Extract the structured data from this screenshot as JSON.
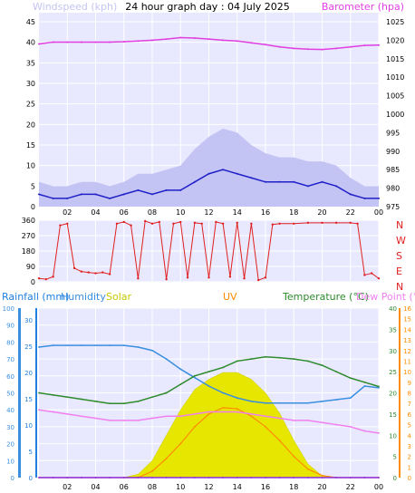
{
  "title": "24 hour graph day : 04 July 2025",
  "x_ticks": [
    "02",
    "04",
    "06",
    "08",
    "10",
    "12",
    "14",
    "16",
    "18",
    "20",
    "22",
    "00"
  ],
  "colors": {
    "plot_bg": "#e8e8ff",
    "wind_gust": "#c4c4f4",
    "wind_avg": "#2020c8",
    "barometer": "#e040e0",
    "direction": "#e02020",
    "humidity": "#3a8fe0",
    "temperature": "#2e8b2e",
    "dewpoint": "#f080f0",
    "solar": "#e6e600",
    "uv": "#ff8c00",
    "rainfall": "#2080e0"
  },
  "panel1": {
    "left_label": "Windspeed (kph)",
    "right_label": "Barometer (hpa)",
    "left_ticks": [
      "0",
      "5",
      "10",
      "15",
      "20",
      "25",
      "30",
      "35",
      "40",
      "45"
    ],
    "right_ticks": [
      "975",
      "980",
      "985",
      "990",
      "995",
      "1000",
      "1005",
      "1010",
      "1015",
      "1020",
      "1025"
    ]
  },
  "panel2": {
    "left_ticks": [
      "0",
      "90",
      "180",
      "270",
      "360"
    ],
    "compass": [
      "N",
      "W",
      "S",
      "E",
      "N"
    ]
  },
  "panel3": {
    "labels": {
      "rainfall": "Rainfall (mm)",
      "humidity": "Humidity",
      "solar": "Solar",
      "uv": "UV",
      "temperature": "Temperature (°C)",
      "dewpoint": "Dew Point (°C)"
    },
    "humidity_ticks": [
      "0",
      "10",
      "20",
      "30",
      "40",
      "50",
      "60",
      "70",
      "80",
      "90",
      "100"
    ],
    "rain_ticks": [
      "0",
      "5",
      "10",
      "15",
      "20",
      "25",
      "30"
    ],
    "temp_ticks": [
      "0",
      "5",
      "10",
      "15",
      "20",
      "25",
      "30",
      "35",
      "40"
    ],
    "uv_ticks": [
      "0",
      "1",
      "2",
      "3",
      "4",
      "5",
      "6",
      "7",
      "8",
      "9",
      "10",
      "11",
      "12",
      "13",
      "14",
      "15",
      "16"
    ]
  },
  "chart_data": [
    {
      "type": "line",
      "title": "24 hour graph day : 04 July 2025",
      "x_hours": [
        0,
        1,
        2,
        3,
        4,
        5,
        6,
        7,
        8,
        9,
        10,
        11,
        12,
        13,
        14,
        15,
        16,
        17,
        18,
        19,
        20,
        21,
        22,
        23,
        24
      ],
      "series": [
        {
          "name": "Windspeed (kph)",
          "axis": "left",
          "ylim": [
            0,
            45
          ],
          "values": [
            3,
            2,
            2,
            3,
            3,
            2,
            3,
            4,
            3,
            4,
            4,
            6,
            8,
            9,
            8,
            7,
            6,
            6,
            6,
            5,
            6,
            5,
            3,
            2,
            2
          ]
        },
        {
          "name": "Barometer (hpa)",
          "axis": "right",
          "ylim": [
            975,
            1025
          ],
          "values": [
            1019,
            1019.5,
            1019.5,
            1019.5,
            1019.5,
            1019.5,
            1019.6,
            1019.8,
            1020,
            1020.3,
            1020.7,
            1020.6,
            1020.3,
            1020,
            1019.8,
            1019.3,
            1018.8,
            1018.2,
            1017.8,
            1017.6,
            1017.5,
            1017.8,
            1018.2,
            1018.6,
            1018.7
          ]
        },
        {
          "name": "Wind gust",
          "axis": "left",
          "ylim": [
            0,
            45
          ],
          "values": [
            6,
            5,
            5,
            6,
            6,
            5,
            6,
            8,
            8,
            9,
            10,
            14,
            17,
            19,
            18,
            15,
            13,
            12,
            12,
            11,
            11,
            10,
            7,
            5,
            5
          ]
        }
      ]
    },
    {
      "type": "scatter",
      "y_label": "Wind direction",
      "ylim": [
        0,
        360
      ],
      "x_hours": [
        0,
        0.5,
        1,
        1.5,
        2,
        2.5,
        3,
        3.5,
        4,
        4.5,
        5,
        5.5,
        6,
        6.5,
        7,
        7.5,
        8,
        8.5,
        9,
        9.5,
        10,
        10.5,
        11,
        11.5,
        12,
        12.5,
        13,
        13.5,
        14,
        14.5,
        15,
        15.5,
        16,
        16.5,
        17,
        18,
        19,
        20,
        21,
        22,
        22.5,
        23,
        23.5,
        24
      ],
      "values": [
        20,
        15,
        30,
        330,
        340,
        80,
        60,
        55,
        50,
        55,
        45,
        340,
        350,
        330,
        20,
        355,
        340,
        350,
        15,
        340,
        350,
        25,
        345,
        340,
        25,
        350,
        340,
        30,
        345,
        20,
        340,
        10,
        25,
        335,
        340,
        340,
        345,
        345,
        345,
        345,
        340,
        40,
        50,
        20
      ]
    },
    {
      "type": "area",
      "x_hours": [
        0,
        1,
        2,
        3,
        4,
        5,
        6,
        7,
        8,
        9,
        10,
        11,
        12,
        13,
        14,
        15,
        16,
        17,
        18,
        19,
        20,
        21,
        22,
        23,
        24
      ],
      "series": [
        {
          "name": "Humidity",
          "axis": "humidity",
          "ylim": [
            0,
            100
          ],
          "values": [
            77,
            78,
            78,
            78,
            78,
            78,
            78,
            77,
            75,
            70,
            64,
            59,
            54,
            50,
            47,
            45,
            44,
            44,
            44,
            44,
            45,
            46,
            47,
            54,
            53
          ]
        },
        {
          "name": "Temperature (°C)",
          "axis": "temperature",
          "ylim": [
            0,
            40
          ],
          "values": [
            20,
            19.5,
            19,
            18.5,
            18,
            17.5,
            17.5,
            18,
            19,
            20,
            22,
            24,
            25,
            26,
            27.5,
            28,
            28.5,
            28.3,
            28,
            27.5,
            26.5,
            25,
            23.5,
            22.5,
            21.5
          ]
        },
        {
          "name": "Dew Point (°C)",
          "axis": "temperature",
          "ylim": [
            0,
            40
          ],
          "values": [
            16,
            15.5,
            15,
            14.5,
            14,
            13.5,
            13.5,
            13.5,
            14,
            14.5,
            14.5,
            15,
            15.5,
            15.5,
            15.5,
            15,
            14.5,
            14,
            13.5,
            13.5,
            13,
            12.5,
            12,
            11,
            10.5
          ]
        },
        {
          "name": "Solar",
          "axis": "humidity",
          "ylim": [
            0,
            100
          ],
          "values": [
            0,
            0,
            0,
            0,
            0,
            0,
            0,
            2,
            10,
            25,
            40,
            52,
            58,
            62,
            62,
            58,
            50,
            38,
            22,
            8,
            1,
            0,
            0,
            0,
            0
          ]
        },
        {
          "name": "UV",
          "axis": "uv",
          "ylim": [
            0,
            16
          ],
          "values": [
            0,
            0,
            0,
            0,
            0,
            0,
            0,
            0,
            0.6,
            1.8,
            3.2,
            4.8,
            6,
            6.6,
            6.5,
            5.8,
            4.8,
            3.5,
            2,
            0.8,
            0.2,
            0,
            0,
            0,
            0
          ]
        },
        {
          "name": "Rainfall (mm)",
          "axis": "rain",
          "ylim": [
            0,
            30
          ],
          "values": [
            0,
            0,
            0,
            0,
            0,
            0,
            0,
            0,
            0,
            0,
            0,
            0,
            0,
            0,
            0,
            0,
            0,
            0,
            0,
            0,
            0,
            0,
            0,
            0,
            0
          ]
        }
      ]
    }
  ]
}
